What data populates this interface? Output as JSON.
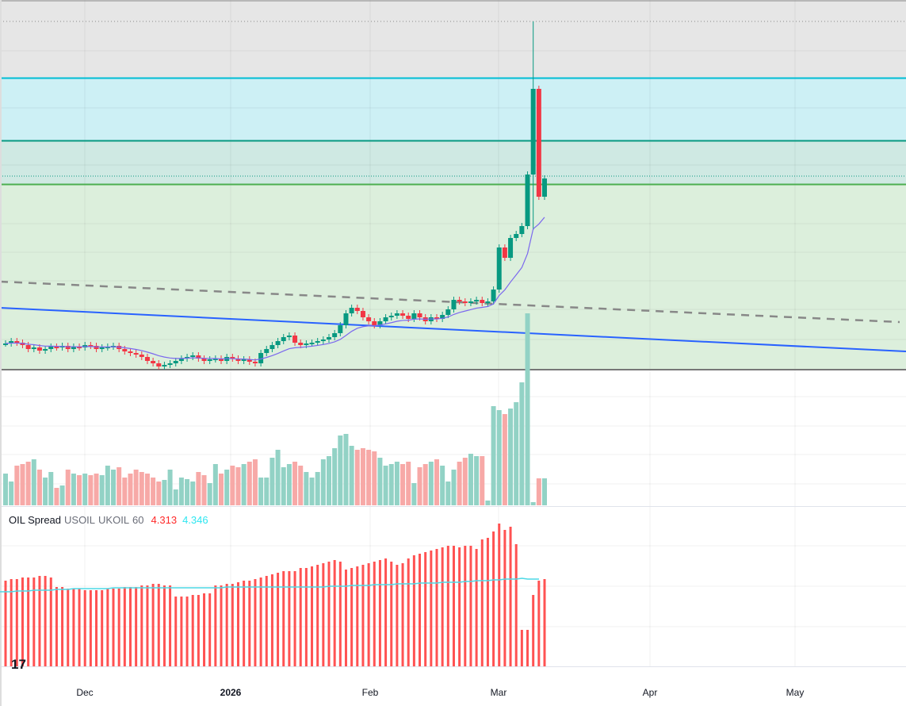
{
  "legend": {
    "name": "OIL Spread",
    "sym1": "USOIL",
    "sym2": "UKOIL",
    "interval": "60",
    "value1": "4.313",
    "value2": "4.346"
  },
  "time_axis": [
    "Dec",
    "2026",
    "Feb",
    "Mar",
    "Apr",
    "May"
  ],
  "logo": "TV",
  "colors": {
    "up": "#089981",
    "down": "#f23645",
    "vol_up": "#92d2c5",
    "vol_down": "#f7a9a7",
    "osc_bar": "#ff5252",
    "osc_line": "#4dd9e6",
    "ma": "#7b68ee",
    "trend": "#2962ff"
  },
  "chart_data": {
    "type": "candlestick",
    "title": "OIL Spread USOIL UKOIL 60",
    "closes": [
      37,
      40,
      38,
      35,
      30,
      32,
      28,
      30,
      33,
      32,
      34,
      30,
      33,
      32,
      35,
      34,
      30,
      32,
      33,
      34,
      30,
      27,
      25,
      23,
      20,
      15,
      12,
      8,
      10,
      12,
      15,
      18,
      20,
      22,
      18,
      15,
      17,
      18,
      15,
      20,
      18,
      15,
      17,
      14,
      12,
      25,
      30,
      35,
      40,
      45,
      47,
      38,
      35,
      37,
      38,
      40,
      42,
      45,
      50,
      60,
      75,
      82,
      78,
      70,
      65,
      60,
      65,
      70,
      72,
      75,
      72,
      68,
      75,
      70,
      65,
      70,
      68,
      73,
      80,
      92,
      90,
      88,
      90,
      92,
      88,
      90,
      105,
      158,
      145,
      170,
      175,
      185,
      250,
      358,
      222,
      245
    ],
    "wick_overrides": {
      "93": {
        "high": 443,
        "low": 180
      }
    },
    "volume": [
      40,
      30,
      50,
      52,
      55,
      58,
      45,
      35,
      42,
      22,
      25,
      45,
      40,
      38,
      40,
      38,
      40,
      38,
      50,
      45,
      48,
      35,
      40,
      45,
      42,
      40,
      35,
      30,
      32,
      45,
      20,
      35,
      33,
      30,
      42,
      38,
      28,
      52,
      40,
      45,
      50,
      48,
      52,
      55,
      58,
      35,
      35,
      60,
      70,
      48,
      52,
      55,
      50,
      42,
      35,
      42,
      58,
      62,
      72,
      88,
      90,
      75,
      70,
      72,
      70,
      68,
      60,
      50,
      52,
      55,
      52,
      55,
      28,
      48,
      52,
      55,
      58,
      50,
      30,
      45,
      55,
      60,
      65,
      62,
      62,
      6,
      125,
      120,
      115,
      122,
      130,
      155,
      242,
      4,
      34,
      34
    ],
    "oscillator": {
      "bars": [
        108,
        110,
        110,
        112,
        112,
        112,
        114,
        114,
        112,
        100,
        100,
        98,
        98,
        98,
        96,
        96,
        96,
        96,
        98,
        98,
        98,
        100,
        100,
        100,
        102,
        102,
        104,
        104,
        102,
        102,
        88,
        88,
        88,
        90,
        90,
        92,
        92,
        102,
        102,
        104,
        104,
        106,
        108,
        108,
        110,
        112,
        114,
        116,
        118,
        120,
        120,
        120,
        124,
        124,
        126,
        128,
        130,
        132,
        134,
        132,
        122,
        124,
        126,
        128,
        130,
        132,
        134,
        136,
        132,
        128,
        130,
        136,
        140,
        142,
        144,
        146,
        148,
        150,
        152,
        152,
        150,
        152,
        152,
        148,
        160,
        162,
        170,
        180,
        172,
        176,
        154,
        46,
        46,
        90,
        108,
        110
      ],
      "line": [
        94,
        94,
        94,
        95,
        95,
        95,
        96,
        96,
        96,
        96,
        97,
        97,
        97,
        98,
        98,
        98,
        98,
        98,
        98,
        98,
        99,
        99,
        99,
        99,
        99,
        99,
        99,
        99,
        99,
        99,
        99,
        99,
        99,
        99,
        99,
        99,
        99,
        99,
        99,
        99,
        100,
        100,
        100,
        100,
        100,
        100,
        100,
        100,
        100,
        100,
        100,
        100,
        100,
        100,
        100,
        100,
        100,
        100,
        101,
        101,
        101,
        101,
        102,
        102,
        102,
        102,
        103,
        103,
        103,
        103,
        104,
        104,
        104,
        104,
        105,
        105,
        105,
        105,
        106,
        106,
        106,
        106,
        107,
        107,
        108,
        108,
        108,
        109,
        109,
        110,
        110,
        110,
        111,
        110,
        110,
        110
      ]
    }
  }
}
